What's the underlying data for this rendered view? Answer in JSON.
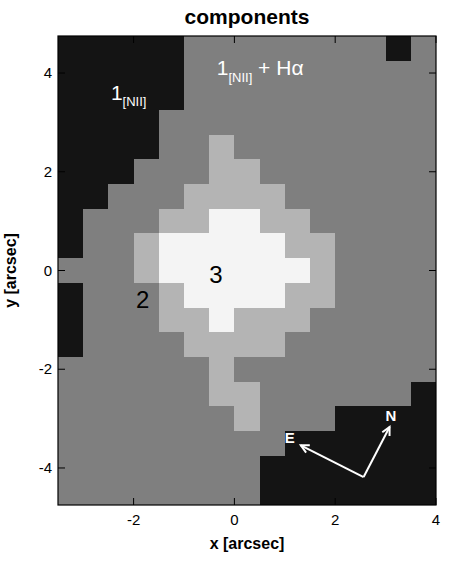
{
  "chart_data": {
    "type": "heatmap",
    "title": "components",
    "x_label": "x [arcsec]",
    "y_label": "y [arcsec]",
    "xlim": [
      -3.5,
      4
    ],
    "ylim": [
      -4.75,
      4.75
    ],
    "xticks": [
      -2,
      0,
      2,
      4
    ],
    "yticks": [
      -4,
      -2,
      0,
      2,
      4
    ],
    "x": [
      -3.25,
      -2.75,
      -2.25,
      -1.75,
      -1.25,
      -0.75,
      -0.25,
      0.25,
      0.75,
      1.25,
      1.75,
      2.25,
      2.75,
      3.25,
      3.75
    ],
    "y": [
      4.5,
      4.0,
      3.5,
      3.0,
      2.5,
      2.0,
      1.5,
      1.0,
      0.5,
      0,
      -0.5,
      -1.0,
      -1.5,
      -2.0,
      -2.5,
      -3.0,
      -3.5,
      -4.0,
      -4.5
    ],
    "colors": [
      "#141414",
      "#7f7f7f",
      "#b4b4b4",
      "#f4f4f4"
    ],
    "cells": [
      [
        0,
        0,
        0,
        0,
        0,
        1,
        1,
        1,
        1,
        1,
        1,
        1,
        1,
        0,
        1
      ],
      [
        0,
        0,
        0,
        0,
        0,
        1,
        1,
        1,
        1,
        1,
        1,
        1,
        1,
        1,
        1
      ],
      [
        0,
        0,
        0,
        0,
        0,
        1,
        1,
        1,
        1,
        1,
        1,
        1,
        1,
        1,
        1
      ],
      [
        0,
        0,
        0,
        0,
        1,
        1,
        1,
        1,
        1,
        1,
        1,
        1,
        1,
        1,
        1
      ],
      [
        0,
        0,
        0,
        0,
        1,
        1,
        2,
        1,
        1,
        1,
        1,
        1,
        1,
        1,
        1
      ],
      [
        0,
        0,
        0,
        1,
        1,
        1,
        2,
        2,
        1,
        1,
        1,
        1,
        1,
        1,
        1
      ],
      [
        0,
        0,
        1,
        1,
        1,
        2,
        2,
        2,
        2,
        1,
        1,
        1,
        1,
        1,
        1
      ],
      [
        0,
        1,
        1,
        1,
        2,
        2,
        3,
        3,
        2,
        2,
        1,
        1,
        1,
        1,
        1
      ],
      [
        0,
        1,
        1,
        2,
        3,
        3,
        3,
        3,
        3,
        2,
        2,
        1,
        1,
        1,
        1
      ],
      [
        1,
        1,
        1,
        2,
        3,
        3,
        3,
        3,
        3,
        3,
        2,
        1,
        1,
        1,
        1
      ],
      [
        0,
        1,
        1,
        1,
        2,
        3,
        3,
        3,
        3,
        2,
        2,
        1,
        1,
        1,
        1
      ],
      [
        0,
        1,
        1,
        1,
        2,
        2,
        3,
        2,
        2,
        2,
        1,
        1,
        1,
        1,
        1
      ],
      [
        0,
        1,
        1,
        1,
        1,
        2,
        2,
        2,
        2,
        1,
        1,
        1,
        1,
        1,
        1
      ],
      [
        1,
        1,
        1,
        1,
        1,
        1,
        2,
        1,
        1,
        1,
        1,
        1,
        1,
        1,
        1
      ],
      [
        1,
        1,
        1,
        1,
        1,
        1,
        2,
        2,
        1,
        1,
        1,
        1,
        1,
        1,
        0
      ],
      [
        1,
        1,
        1,
        1,
        1,
        1,
        1,
        2,
        1,
        1,
        1,
        0,
        0,
        0,
        0
      ],
      [
        1,
        1,
        1,
        1,
        1,
        1,
        1,
        1,
        1,
        0,
        0,
        0,
        0,
        0,
        0
      ],
      [
        1,
        1,
        1,
        1,
        1,
        1,
        1,
        1,
        0,
        0,
        0,
        0,
        0,
        0,
        0
      ],
      [
        1,
        1,
        1,
        1,
        1,
        1,
        1,
        1,
        0,
        0,
        0,
        0,
        0,
        0,
        0
      ]
    ],
    "annotations": [
      {
        "parts": [
          {
            "text": "1"
          },
          {
            "text": "[NII]",
            "sub": true
          }
        ],
        "x": -2.45,
        "y": 3.45,
        "color": "#ffffff"
      },
      {
        "parts": [
          {
            "text": "1"
          },
          {
            "text": "[NII]",
            "sub": true
          },
          {
            "text": " + Hα"
          }
        ],
        "x": -0.35,
        "y": 3.95,
        "color": "#ffffff"
      },
      {
        "parts": [
          {
            "text": "2"
          }
        ],
        "x": -1.95,
        "y": -0.75,
        "color": "#000000"
      },
      {
        "parts": [
          {
            "text": "3"
          }
        ],
        "x": -0.5,
        "y": -0.25,
        "color": "#000000"
      },
      {
        "parts": [
          {
            "text": "N"
          }
        ],
        "x": 3.0,
        "y": -3.05,
        "color": "#ffffff"
      },
      {
        "parts": [
          {
            "text": "E"
          }
        ],
        "x": 1.0,
        "y": -3.5,
        "color": "#ffffff"
      }
    ]
  }
}
